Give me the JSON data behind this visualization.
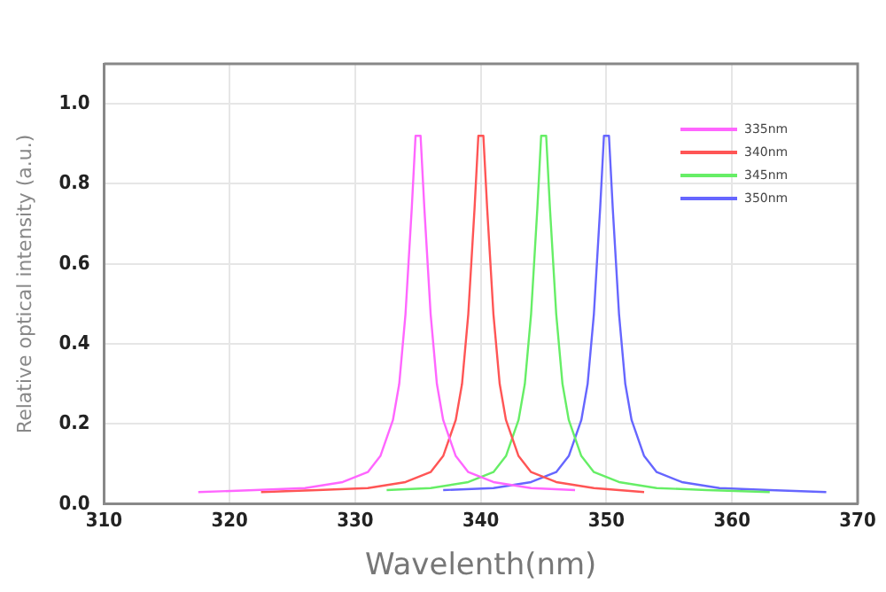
{
  "chart_data": {
    "type": "line",
    "xlabel": "Wavelenth(nm)",
    "ylabel": "Relative optical intensity (a.u.)",
    "xlim": [
      310,
      370
    ],
    "xticks": [
      310,
      320,
      330,
      340,
      350,
      360,
      370
    ],
    "ylim": [
      0,
      1.1
    ],
    "yticks": [
      {
        "value": 0,
        "label": "0.0"
      },
      {
        "value": 0.2,
        "label": "0.2"
      },
      {
        "value": 0.4,
        "label": "0.4"
      },
      {
        "value": 0.6,
        "label": "0.6"
      },
      {
        "value": 0.8,
        "label": "0.8"
      },
      {
        "value": 1,
        "label": "1.0"
      }
    ],
    "grid": true,
    "legend": "top right",
    "marker": "none",
    "line_style": "solid",
    "series": [
      {
        "name": "335nm",
        "color": "#ff66ff",
        "x": [
          317.5,
          322,
          326,
          329,
          331,
          332,
          333,
          333.5,
          334,
          334.5,
          334.8,
          335.2,
          335.5,
          336,
          336.5,
          337,
          338,
          339,
          341,
          344,
          347.5
        ],
        "values": [
          0.03,
          0.035,
          0.04,
          0.055,
          0.08,
          0.12,
          0.21,
          0.3,
          0.475,
          0.74,
          0.92,
          0.92,
          0.74,
          0.475,
          0.3,
          0.21,
          0.12,
          0.08,
          0.055,
          0.04,
          0.035
        ]
      },
      {
        "name": "340nm",
        "color": "#ff5555",
        "x": [
          322.5,
          327,
          331,
          334,
          336,
          337,
          338,
          338.5,
          339,
          339.5,
          339.8,
          340.2,
          340.5,
          341,
          341.5,
          342,
          343,
          344,
          346,
          349,
          353
        ],
        "values": [
          0.03,
          0.035,
          0.04,
          0.055,
          0.08,
          0.12,
          0.21,
          0.3,
          0.475,
          0.74,
          0.92,
          0.92,
          0.74,
          0.475,
          0.3,
          0.21,
          0.12,
          0.08,
          0.055,
          0.04,
          0.03
        ]
      },
      {
        "name": "345nm",
        "color": "#66ee66",
        "x": [
          332.5,
          336,
          339,
          341,
          342,
          343,
          343.5,
          344,
          344.5,
          344.8,
          345.2,
          345.5,
          346,
          346.5,
          347,
          348,
          349,
          351,
          354,
          358,
          363
        ],
        "values": [
          0.035,
          0.04,
          0.055,
          0.08,
          0.12,
          0.21,
          0.3,
          0.475,
          0.74,
          0.92,
          0.92,
          0.74,
          0.475,
          0.3,
          0.21,
          0.12,
          0.08,
          0.055,
          0.04,
          0.035,
          0.03
        ]
      },
      {
        "name": "350nm",
        "color": "#6666ff",
        "x": [
          337,
          341,
          344,
          346,
          347,
          348,
          348.5,
          349,
          349.5,
          349.8,
          350.2,
          350.5,
          351,
          351.5,
          352,
          353,
          354,
          356,
          359,
          363,
          367.5
        ],
        "values": [
          0.035,
          0.04,
          0.055,
          0.08,
          0.12,
          0.21,
          0.3,
          0.475,
          0.74,
          0.92,
          0.92,
          0.74,
          0.475,
          0.3,
          0.21,
          0.12,
          0.08,
          0.055,
          0.04,
          0.035,
          0.03
        ]
      }
    ]
  }
}
